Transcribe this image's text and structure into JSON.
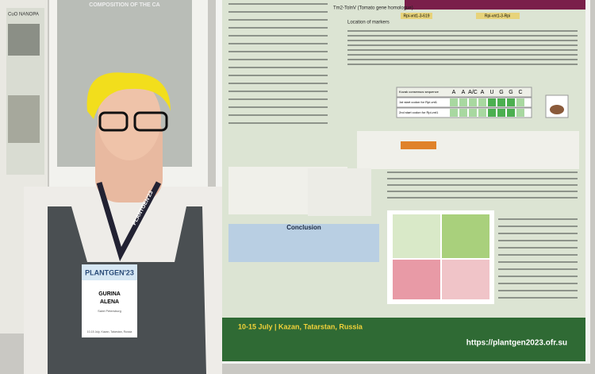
{
  "left_poster": {
    "title": "CuO NANOPA"
  },
  "center_poster": {
    "title": "COMPOSITION OF THE CA"
  },
  "poster": {
    "gene_label": "Tm2-TolnV (Tomato gene homologue)",
    "marker_label": "Location of markers",
    "marker_1": "Rpi-vnt1-3-619",
    "marker_2": "Rpi-vnt1-3-Rpi",
    "table_rows": [
      "Kozak consensus sequence",
      "1st start codon for Rpi-vnt1",
      "2nd start codon for Rpi-vnt1"
    ],
    "kozak": [
      "A",
      "A",
      "A/C",
      "A",
      "U",
      "G",
      "G",
      "C"
    ],
    "conclusion_heading": "Conclusion",
    "footer_dates": "10-15 July | Kazan, Tatarstan, Russia",
    "footer_url": "https://plantgen2023.ofr.su"
  },
  "badge": {
    "event": "PLANTGEN'23",
    "surname": "GURINA",
    "first_name": "ALENA",
    "city": "Saint Petersburg",
    "dates": "10-15 July, Kazan, Tatarstan, Russia"
  },
  "lanyard": "PLANTGEN'23"
}
